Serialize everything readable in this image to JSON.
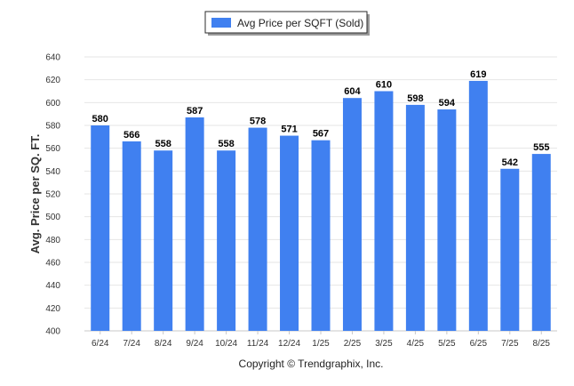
{
  "footer": {
    "copyright": "Copyright © Trendgraphix, Inc."
  },
  "chart_data": {
    "type": "bar",
    "title": "",
    "xlabel": "",
    "ylabel": "Avg. Price per SQ. FT.",
    "categories": [
      "6/24",
      "7/24",
      "8/24",
      "9/24",
      "10/24",
      "11/24",
      "12/24",
      "1/25",
      "2/25",
      "3/25",
      "4/25",
      "5/25",
      "6/25",
      "7/25",
      "8/25"
    ],
    "series": [
      {
        "name": "Avg Price per SQFT (Sold)",
        "color": "#4080f0",
        "values": [
          580,
          566,
          558,
          587,
          558,
          578,
          571,
          567,
          604,
          610,
          598,
          594,
          619,
          542,
          555
        ]
      }
    ],
    "ylim": [
      400,
      640
    ],
    "yticks": [
      400,
      420,
      440,
      460,
      480,
      500,
      520,
      540,
      560,
      580,
      600,
      620,
      640
    ],
    "grid": true,
    "legend": "top-center",
    "data_labels": true
  }
}
